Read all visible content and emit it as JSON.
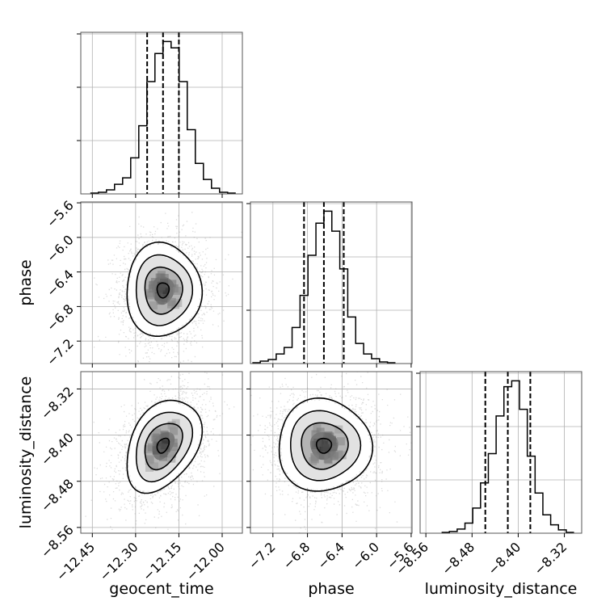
{
  "chart_data": {
    "type": "corner",
    "parameters": [
      "geocent_time",
      "phase",
      "luminosity_distance"
    ],
    "axis_labels": {
      "geocent_time": "geocent_time",
      "phase": "phase",
      "luminosity_distance": "luminosity_distance"
    },
    "ranges": {
      "geocent_time": [
        -12.49,
        -11.93
      ],
      "phase": [
        -7.46,
        -5.59
      ],
      "luminosity_distance": [
        -8.57,
        -8.29
      ]
    },
    "ticks": {
      "geocent_time": [
        {
          "value": -12.45,
          "label": "−12.45"
        },
        {
          "value": -12.3,
          "label": "−12.30"
        },
        {
          "value": -12.15,
          "label": "−12.15"
        },
        {
          "value": -12.0,
          "label": "−12.00"
        }
      ],
      "phase": [
        {
          "value": -7.2,
          "label": "−7.2"
        },
        {
          "value": -6.8,
          "label": "−6.8"
        },
        {
          "value": -6.4,
          "label": "−6.4"
        },
        {
          "value": -6.0,
          "label": "−6.0"
        },
        {
          "value": -5.6,
          "label": "−5.6"
        }
      ],
      "luminosity_distance": [
        {
          "value": -8.56,
          "label": "−8.56"
        },
        {
          "value": -8.48,
          "label": "−8.48"
        },
        {
          "value": -8.4,
          "label": "−8.40"
        },
        {
          "value": -8.32,
          "label": "−8.32"
        }
      ]
    },
    "quantiles": {
      "geocent_time": [
        -12.26,
        -12.205,
        -12.15
      ],
      "phase": [
        -6.84,
        -6.61,
        -6.38
      ],
      "luminosity_distance": [
        -8.457,
        -8.418,
        -8.379
      ]
    },
    "histograms": {
      "geocent_time": {
        "bin_width": 0.028,
        "counts": [
          1,
          2,
          5,
          12,
          20,
          45,
          85,
          140,
          175,
          190,
          182,
          140,
          80,
          38,
          18,
          7,
          2,
          1
        ]
      },
      "phase": {
        "bin_width": 0.092,
        "counts": [
          1,
          3,
          5,
          12,
          20,
          45,
          85,
          135,
          175,
          190,
          165,
          118,
          58,
          25,
          12,
          6,
          2,
          1
        ]
      },
      "luminosity_distance": {
        "bin_width": 0.0135,
        "counts": [
          1,
          2,
          5,
          12,
          30,
          60,
          95,
          140,
          175,
          182,
          148,
          92,
          48,
          22,
          10,
          4,
          1
        ]
      }
    },
    "joint": [
      {
        "x": "geocent_time",
        "y": "phase",
        "mean": [
          -12.205,
          -6.61
        ],
        "sd": [
          0.065,
          0.27
        ],
        "corr": 0.0
      },
      {
        "x": "geocent_time",
        "y": "luminosity_distance",
        "mean": [
          -12.205,
          -8.418
        ],
        "sd": [
          0.065,
          0.04
        ],
        "corr": 0.35
      },
      {
        "x": "phase",
        "y": "luminosity_distance",
        "mean": [
          -6.61,
          -8.418
        ],
        "sd": [
          0.27,
          0.04
        ],
        "corr": 0.0
      }
    ],
    "grid": true,
    "colors": {
      "line": "#000000",
      "points": "#808080",
      "grid": "#b0b0b0",
      "frame": "#555555"
    }
  }
}
